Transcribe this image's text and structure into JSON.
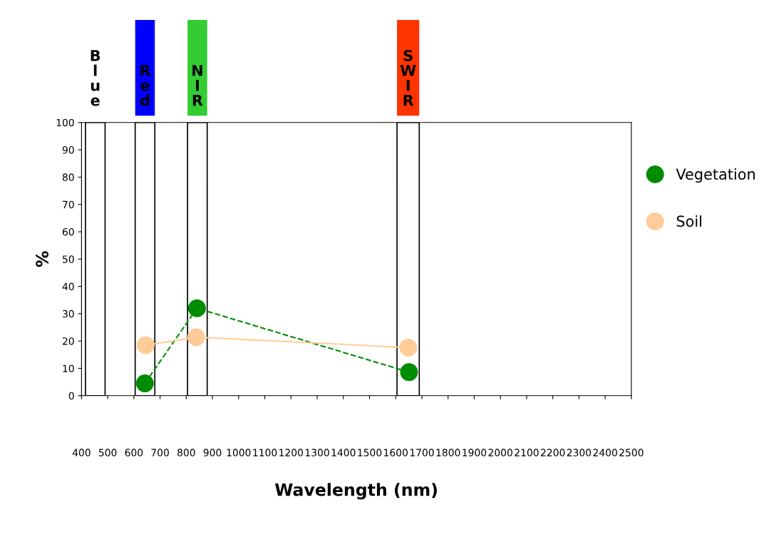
{
  "chart_data": {
    "type": "line",
    "xlabel": "Wavelength (nm)",
    "ylabel": "%",
    "xlim": [
      400,
      2500
    ],
    "xticks": [
      400,
      500,
      600,
      700,
      800,
      900,
      1000,
      1100,
      1200,
      1300,
      1400,
      1500,
      1600,
      1700,
      1800,
      1900,
      2000,
      2100,
      2200,
      2300,
      2400,
      2500
    ],
    "ylim": [
      0,
      100
    ],
    "yticks": [
      0,
      10,
      20,
      30,
      40,
      50,
      60,
      70,
      80,
      90,
      100
    ],
    "marker": "circle",
    "grid": false,
    "legend": "right",
    "series": [
      {
        "name": "Vegetation",
        "color": "#008c00",
        "line_style": "dashed",
        "x": [
          642,
          841,
          1651
        ],
        "values": [
          4.5,
          32,
          8.6
        ]
      },
      {
        "name": "Soil",
        "color": "#ffcc99",
        "line_style": "solid",
        "x": [
          645,
          838,
          1648
        ],
        "values": [
          18.5,
          21.4,
          17.6
        ]
      }
    ],
    "bands": [
      {
        "axis": "x",
        "from": 415,
        "to": 490,
        "label": "Blue",
        "color": "#ffffff"
      },
      {
        "axis": "x",
        "from": 605,
        "to": 680,
        "label": "Red",
        "color": "#ffffff"
      },
      {
        "axis": "x",
        "from": 805,
        "to": 880,
        "label": "NIR",
        "color": "#ffffff"
      },
      {
        "axis": "x",
        "from": 1605,
        "to": 1690,
        "label": "SWIR",
        "color": "#ffffff"
      }
    ]
  }
}
